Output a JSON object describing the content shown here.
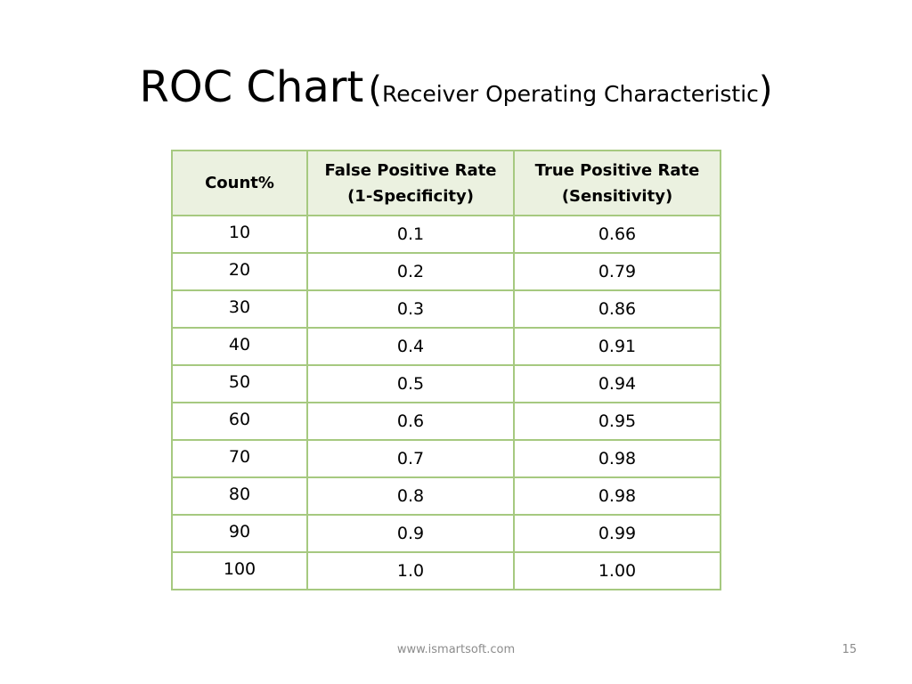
{
  "slide": {
    "title": "ROC Chart",
    "title_paren_open": "(",
    "subtitle": "Receiver Operating Characteristic",
    "title_paren_close": ")"
  },
  "table": {
    "headers": [
      [
        "Count%"
      ],
      [
        "False Positive Rate",
        "(1-Specificity)"
      ],
      [
        "True Positive Rate",
        "(Sensitivity)"
      ]
    ],
    "rows": [
      [
        "10",
        "0.1",
        "0.66"
      ],
      [
        "20",
        "0.2",
        "0.79"
      ],
      [
        "30",
        "0.3",
        "0.86"
      ],
      [
        "40",
        "0.4",
        "0.91"
      ],
      [
        "50",
        "0.5",
        "0.94"
      ],
      [
        "60",
        "0.6",
        "0.95"
      ],
      [
        "70",
        "0.7",
        "0.98"
      ],
      [
        "80",
        "0.8",
        "0.98"
      ],
      [
        "90",
        "0.9",
        "0.99"
      ],
      [
        "100",
        "1.0",
        "1.00"
      ]
    ]
  },
  "footer": {
    "url": "www.ismartsoft.com",
    "page_number": "15"
  },
  "colors": {
    "table_border": "#a6c980",
    "header_background": "#ebf1e0",
    "footer_text": "#8c8c8c"
  }
}
